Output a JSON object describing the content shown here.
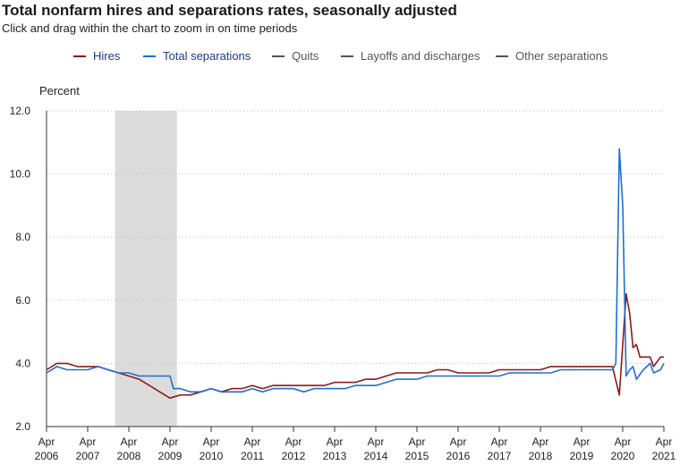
{
  "header": {
    "title": "Total nonfarm hires and separations rates, seasonally adjusted",
    "subtitle": "Click and drag within the chart to zoom in on time periods"
  },
  "legend": [
    {
      "label": "Hires",
      "color": "#8b1a1a"
    },
    {
      "label": "Total separations",
      "color": "#1f6fd1"
    },
    {
      "label": "Quits",
      "color": "#555555"
    },
    {
      "label": "Layoffs and discharges",
      "color": "#555555"
    },
    {
      "label": "Other separations",
      "color": "#555555"
    }
  ],
  "chart_data": {
    "type": "line",
    "title": "Total nonfarm hires and separations rates, seasonally adjusted",
    "ylabel": "Percent",
    "xlabel": "",
    "ylim": [
      2.0,
      12.0
    ],
    "yticks": [
      "2.0",
      "4.0",
      "6.0",
      "8.0",
      "10.0",
      "12.0"
    ],
    "xticks": [
      [
        "Apr",
        "2006"
      ],
      [
        "Apr",
        "2007"
      ],
      [
        "Apr",
        "2008"
      ],
      [
        "Apr",
        "2009"
      ],
      [
        "Apr",
        "2010"
      ],
      [
        "Apr",
        "2011"
      ],
      [
        "Apr",
        "2012"
      ],
      [
        "Apr",
        "2013"
      ],
      [
        "Apr",
        "2014"
      ],
      [
        "Apr",
        "2015"
      ],
      [
        "Apr",
        "2016"
      ],
      [
        "Apr",
        "2017"
      ],
      [
        "Apr",
        "2018"
      ],
      [
        "Apr",
        "2019"
      ],
      [
        "Apr",
        "2020"
      ],
      [
        "Apr",
        "2021"
      ]
    ],
    "xrange": [
      "2006-04",
      "2021-04"
    ],
    "recession_shading": [
      "2007-12",
      "2009-06"
    ],
    "grid": "horizontal dotted",
    "series": [
      {
        "name": "Hires",
        "color": "#8b1a1a",
        "points": [
          [
            "2006-04",
            3.8
          ],
          [
            "2006-07",
            4.0
          ],
          [
            "2006-10",
            4.0
          ],
          [
            "2007-01",
            3.9
          ],
          [
            "2007-04",
            3.9
          ],
          [
            "2007-07",
            3.9
          ],
          [
            "2007-10",
            3.8
          ],
          [
            "2008-01",
            3.7
          ],
          [
            "2008-04",
            3.6
          ],
          [
            "2008-07",
            3.5
          ],
          [
            "2008-10",
            3.3
          ],
          [
            "2009-01",
            3.1
          ],
          [
            "2009-04",
            2.9
          ],
          [
            "2009-07",
            3.0
          ],
          [
            "2009-10",
            3.0
          ],
          [
            "2010-01",
            3.1
          ],
          [
            "2010-04",
            3.2
          ],
          [
            "2010-07",
            3.1
          ],
          [
            "2010-10",
            3.2
          ],
          [
            "2011-01",
            3.2
          ],
          [
            "2011-04",
            3.3
          ],
          [
            "2011-07",
            3.2
          ],
          [
            "2011-10",
            3.3
          ],
          [
            "2012-01",
            3.3
          ],
          [
            "2012-04",
            3.3
          ],
          [
            "2012-07",
            3.3
          ],
          [
            "2012-10",
            3.3
          ],
          [
            "2013-01",
            3.3
          ],
          [
            "2013-04",
            3.4
          ],
          [
            "2013-07",
            3.4
          ],
          [
            "2013-10",
            3.4
          ],
          [
            "2014-01",
            3.5
          ],
          [
            "2014-04",
            3.5
          ],
          [
            "2014-07",
            3.6
          ],
          [
            "2014-10",
            3.7
          ],
          [
            "2015-01",
            3.7
          ],
          [
            "2015-04",
            3.7
          ],
          [
            "2015-07",
            3.7
          ],
          [
            "2015-10",
            3.8
          ],
          [
            "2016-01",
            3.8
          ],
          [
            "2016-04",
            3.7
          ],
          [
            "2016-07",
            3.7
          ],
          [
            "2016-10",
            3.7
          ],
          [
            "2017-01",
            3.7
          ],
          [
            "2017-04",
            3.8
          ],
          [
            "2017-07",
            3.8
          ],
          [
            "2017-10",
            3.8
          ],
          [
            "2018-01",
            3.8
          ],
          [
            "2018-04",
            3.8
          ],
          [
            "2018-07",
            3.9
          ],
          [
            "2018-10",
            3.9
          ],
          [
            "2019-01",
            3.9
          ],
          [
            "2019-04",
            3.9
          ],
          [
            "2019-07",
            3.9
          ],
          [
            "2019-10",
            3.9
          ],
          [
            "2020-01",
            3.9
          ],
          [
            "2020-03",
            3.0
          ],
          [
            "2020-05",
            6.2
          ],
          [
            "2020-06",
            5.6
          ],
          [
            "2020-07",
            4.5
          ],
          [
            "2020-08",
            4.6
          ],
          [
            "2020-09",
            4.2
          ],
          [
            "2020-12",
            4.2
          ],
          [
            "2021-01",
            3.9
          ],
          [
            "2021-03",
            4.2
          ],
          [
            "2021-04",
            4.2
          ]
        ]
      },
      {
        "name": "Total separations",
        "color": "#1f6fd1",
        "points": [
          [
            "2006-04",
            3.7
          ],
          [
            "2006-07",
            3.9
          ],
          [
            "2006-10",
            3.8
          ],
          [
            "2007-01",
            3.8
          ],
          [
            "2007-04",
            3.8
          ],
          [
            "2007-07",
            3.9
          ],
          [
            "2007-10",
            3.8
          ],
          [
            "2008-01",
            3.7
          ],
          [
            "2008-04",
            3.7
          ],
          [
            "2008-07",
            3.6
          ],
          [
            "2008-10",
            3.6
          ],
          [
            "2009-01",
            3.6
          ],
          [
            "2009-04",
            3.6
          ],
          [
            "2009-05",
            3.2
          ],
          [
            "2009-07",
            3.2
          ],
          [
            "2009-10",
            3.1
          ],
          [
            "2010-01",
            3.1
          ],
          [
            "2010-04",
            3.2
          ],
          [
            "2010-07",
            3.1
          ],
          [
            "2010-10",
            3.1
          ],
          [
            "2011-01",
            3.1
          ],
          [
            "2011-04",
            3.2
          ],
          [
            "2011-07",
            3.1
          ],
          [
            "2011-10",
            3.2
          ],
          [
            "2012-01",
            3.2
          ],
          [
            "2012-04",
            3.2
          ],
          [
            "2012-07",
            3.1
          ],
          [
            "2012-10",
            3.2
          ],
          [
            "2013-01",
            3.2
          ],
          [
            "2013-04",
            3.2
          ],
          [
            "2013-07",
            3.2
          ],
          [
            "2013-10",
            3.3
          ],
          [
            "2014-01",
            3.3
          ],
          [
            "2014-04",
            3.3
          ],
          [
            "2014-07",
            3.4
          ],
          [
            "2014-10",
            3.5
          ],
          [
            "2015-01",
            3.5
          ],
          [
            "2015-04",
            3.5
          ],
          [
            "2015-07",
            3.6
          ],
          [
            "2015-10",
            3.6
          ],
          [
            "2016-01",
            3.6
          ],
          [
            "2016-04",
            3.6
          ],
          [
            "2016-07",
            3.6
          ],
          [
            "2016-10",
            3.6
          ],
          [
            "2017-01",
            3.6
          ],
          [
            "2017-04",
            3.6
          ],
          [
            "2017-07",
            3.7
          ],
          [
            "2017-10",
            3.7
          ],
          [
            "2018-01",
            3.7
          ],
          [
            "2018-04",
            3.7
          ],
          [
            "2018-07",
            3.7
          ],
          [
            "2018-10",
            3.8
          ],
          [
            "2019-01",
            3.8
          ],
          [
            "2019-04",
            3.8
          ],
          [
            "2019-07",
            3.8
          ],
          [
            "2019-10",
            3.8
          ],
          [
            "2020-01",
            3.8
          ],
          [
            "2020-02",
            4.0
          ],
          [
            "2020-03",
            10.8
          ],
          [
            "2020-04",
            9.0
          ],
          [
            "2020-05",
            3.6
          ],
          [
            "2020-06",
            3.8
          ],
          [
            "2020-07",
            3.9
          ],
          [
            "2020-08",
            3.5
          ],
          [
            "2020-10",
            3.8
          ],
          [
            "2020-12",
            4.0
          ],
          [
            "2021-01",
            3.7
          ],
          [
            "2021-03",
            3.8
          ],
          [
            "2021-04",
            4.0
          ]
        ]
      }
    ]
  }
}
